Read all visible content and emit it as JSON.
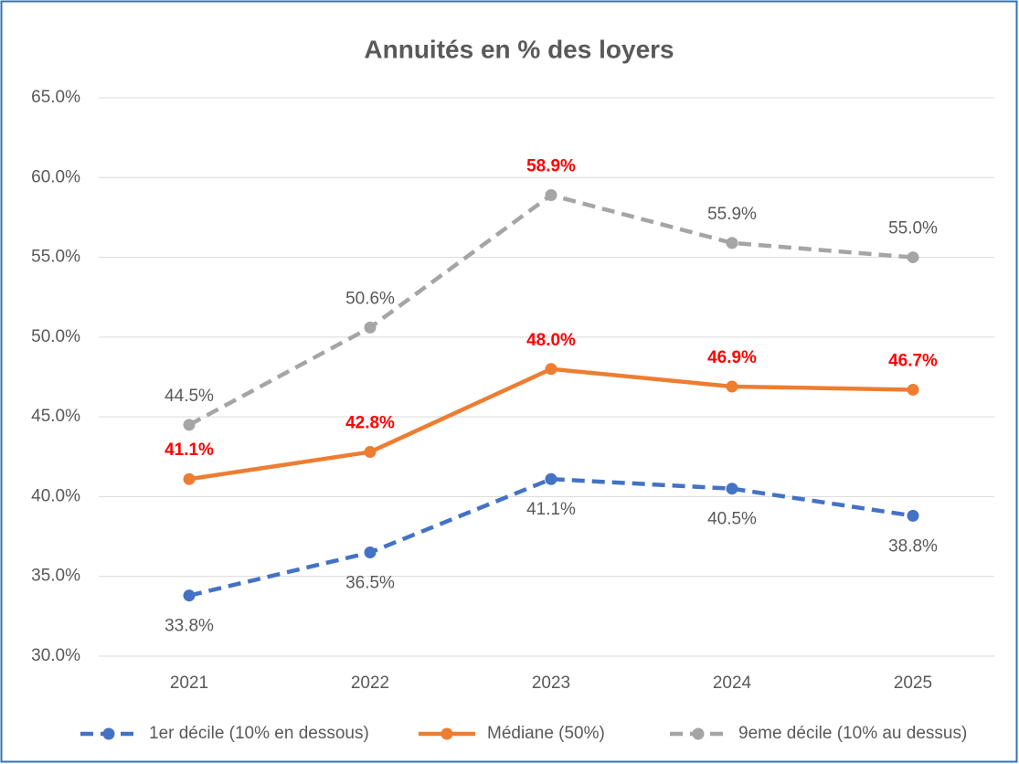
{
  "chart_data": {
    "type": "line",
    "title": "Annuités en % des loyers",
    "categories": [
      "2021",
      "2022",
      "2023",
      "2024",
      "2025"
    ],
    "ylim": [
      30,
      65
    ],
    "yticks": [
      {
        "value": 30,
        "label": "30.0%"
      },
      {
        "value": 35,
        "label": "35.0%"
      },
      {
        "value": 40,
        "label": "40.0%"
      },
      {
        "value": 45,
        "label": "45.0%"
      },
      {
        "value": 50,
        "label": "50.0%"
      },
      {
        "value": 55,
        "label": "55.0%"
      },
      {
        "value": 60,
        "label": "60.0%"
      },
      {
        "value": 65,
        "label": "65.0%"
      }
    ],
    "grid": true,
    "legend": "bottom",
    "series": [
      {
        "name": "1er décile (10% en dessous)",
        "color": "#4472c4",
        "dashed": true,
        "label_position": "below",
        "values": [
          33.8,
          36.5,
          41.1,
          40.5,
          38.8
        ],
        "value_labels": [
          "33.8%",
          "36.5%",
          "41.1%",
          "40.5%",
          "38.8%"
        ],
        "label_colors": [
          "#595959",
          "#595959",
          "#595959",
          "#595959",
          "#595959"
        ]
      },
      {
        "name": "Médiane (50%)",
        "color": "#ed7d31",
        "dashed": false,
        "label_position": "above",
        "values": [
          41.1,
          42.8,
          48.0,
          46.9,
          46.7
        ],
        "value_labels": [
          "41.1%",
          "42.8%",
          "48.0%",
          "46.9%",
          "46.7%"
        ],
        "label_colors": [
          "#ff0000",
          "#ff0000",
          "#ff0000",
          "#ff0000",
          "#ff0000"
        ]
      },
      {
        "name": "9eme décile (10% au dessus)",
        "color": "#a5a5a5",
        "dashed": true,
        "label_position": "above",
        "values": [
          44.5,
          50.6,
          58.9,
          55.9,
          55.0
        ],
        "value_labels": [
          "44.5%",
          "50.6%",
          "58.9%",
          "55.9%",
          "55.0%"
        ],
        "label_colors": [
          "#595959",
          "#595959",
          "#ff0000",
          "#595959",
          "#595959"
        ]
      }
    ]
  }
}
